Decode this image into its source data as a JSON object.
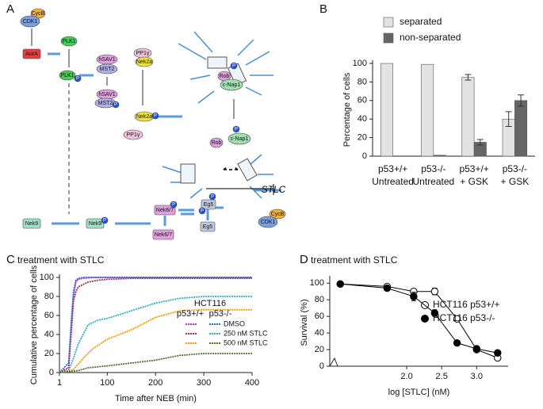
{
  "diagram": {
    "panel_label": "A",
    "nodes": [
      "CycB",
      "CDK1",
      "AurA",
      "PLK1",
      "PLK1",
      "P",
      "hSAV1",
      "MST2",
      "PP1γ",
      "Nek2a",
      "hSAV1",
      "MST2",
      "P",
      "Nek2a",
      "P",
      "PP1γ",
      "Rob",
      "c-Nap1",
      "P",
      "Rob",
      "c-Nap1",
      "P",
      "Eg5",
      "P",
      "P",
      "STLC",
      "CycB",
      "CDK1",
      "Eg5",
      "Nek6/7",
      "P",
      "Nek6/7",
      "Nek9",
      "Nek9",
      "P"
    ]
  },
  "chart_data": [
    {
      "type": "bar",
      "panel_label": "B",
      "y_label": "Percentage of cells",
      "categories": [
        [
          "p53+/+",
          "Untreated"
        ],
        [
          "p53-/-",
          "Untreated"
        ],
        [
          "p53+/+",
          "+ GSK"
        ],
        [
          "p53-/-",
          "+ GSK"
        ]
      ],
      "series": [
        {
          "name": "separated",
          "color": "#e2e2e2",
          "values": [
            100,
            99,
            85,
            40
          ],
          "errors": [
            0,
            0,
            3,
            8
          ]
        },
        {
          "name": "non-separated",
          "color": "#666666",
          "values": [
            0,
            1,
            15,
            60
          ],
          "errors": [
            0,
            0,
            3,
            6
          ]
        }
      ],
      "ylim": [
        0,
        100
      ],
      "yticks": [
        0,
        20,
        40,
        60,
        80,
        100
      ]
    },
    {
      "type": "line",
      "panel_label": "C",
      "title": "treatment with STLC",
      "x_label": "Time after NEB (min)",
      "y_label": "Cumulative percentage of cells",
      "legend": {
        "title": "HCT116",
        "columns": [
          "p53+/+",
          "p53-/-"
        ],
        "rows": [
          "DMSO",
          "250 nM STLC",
          "500 nM STLC"
        ]
      },
      "series": [
        {
          "color": "#cc33cc",
          "x": [
            1,
            20,
            25,
            30,
            35,
            40,
            50,
            70,
            100,
            400
          ],
          "values": [
            0,
            5,
            40,
            80,
            95,
            98,
            99,
            100,
            100,
            100
          ]
        },
        {
          "color": "#993344",
          "x": [
            1,
            20,
            25,
            30,
            35,
            40,
            60,
            80,
            100,
            150,
            200,
            400
          ],
          "values": [
            0,
            5,
            40,
            75,
            85,
            90,
            95,
            97,
            98,
            99,
            99,
            99
          ]
        },
        {
          "color": "#ff9900",
          "x": [
            1,
            30,
            50,
            70,
            100,
            150,
            200,
            250,
            300,
            400
          ],
          "values": [
            0,
            3,
            15,
            25,
            35,
            45,
            58,
            65,
            66,
            66
          ]
        },
        {
          "color": "#3366cc",
          "x": [
            1,
            20,
            25,
            30,
            35,
            40,
            50,
            70,
            100,
            400
          ],
          "values": [
            0,
            10,
            50,
            85,
            97,
            99,
            100,
            100,
            100,
            100
          ]
        },
        {
          "color": "#33aacc",
          "x": [
            1,
            20,
            30,
            40,
            50,
            60,
            80,
            100,
            120,
            150,
            200,
            250,
            300,
            400
          ],
          "values": [
            0,
            2,
            15,
            30,
            40,
            50,
            55,
            57,
            60,
            65,
            73,
            78,
            80,
            80
          ]
        },
        {
          "color": "#556b2f",
          "x": [
            1,
            40,
            60,
            100,
            150,
            200,
            250,
            300,
            400
          ],
          "values": [
            0,
            2,
            5,
            7,
            10,
            13,
            18,
            20,
            20
          ]
        }
      ],
      "xlim": [
        1,
        400
      ],
      "xticks": [
        1,
        100,
        200,
        300,
        400
      ],
      "ylim": [
        0,
        100
      ],
      "yticks": [
        0,
        20,
        40,
        60,
        80,
        100
      ]
    },
    {
      "type": "scatter",
      "panel_label": "D",
      "title": "treatment with STLC",
      "x_label": "log [STLC] (nM)",
      "y_label": "Survival (%)",
      "series": [
        {
          "name": "HCT116 p53+/+",
          "marker": "open",
          "color": "#000000",
          "x": [
            1.05,
            1.72,
            2.1,
            2.4,
            2.72,
            3.0,
            3.3
          ],
          "values": [
            99,
            96,
            90,
            90,
            57,
            20,
            10
          ],
          "errors": [
            3,
            2,
            3,
            4,
            2,
            2,
            2
          ]
        },
        {
          "name": "HCT116 p53-/-",
          "marker": "filled",
          "color": "#000000",
          "x": [
            1.05,
            1.72,
            2.1,
            2.4,
            2.72,
            3.0,
            3.3
          ],
          "values": [
            99,
            94,
            84,
            64,
            28,
            21,
            16
          ],
          "errors": [
            3,
            2,
            5,
            4,
            2,
            2,
            2
          ]
        }
      ],
      "xlim": [
        0.9,
        3.45
      ],
      "xticks": [
        {
          "value": 2,
          "label": "2.0"
        },
        2.5,
        {
          "value": 3,
          "label": "3.0"
        }
      ],
      "ylim": [
        0,
        105
      ],
      "yticks": [
        0,
        20,
        40,
        60,
        80,
        100
      ]
    }
  ]
}
